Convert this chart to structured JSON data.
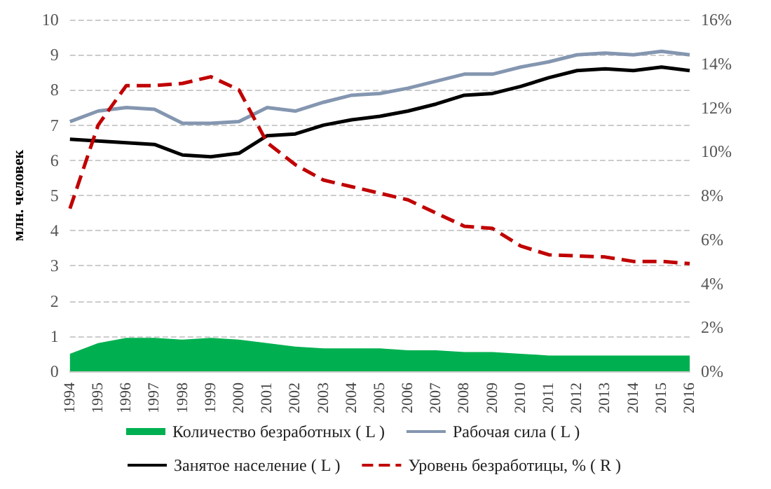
{
  "chart_data": {
    "type": "line",
    "ylabel": "млн. человек",
    "categories": [
      "1994",
      "1995",
      "1996",
      "1997",
      "1998",
      "1999",
      "2000",
      "2001",
      "2002",
      "2003",
      "2004",
      "2005",
      "2006",
      "2007",
      "2008",
      "2009",
      "2010",
      "2011",
      "2012",
      "2013",
      "2014",
      "2015",
      "2016"
    ],
    "series": [
      {
        "name": "Количество безработных ( L )",
        "type": "area",
        "color": "#00b050",
        "values": [
          0.5,
          0.8,
          0.95,
          0.95,
          0.9,
          0.95,
          0.9,
          0.8,
          0.7,
          0.65,
          0.65,
          0.65,
          0.6,
          0.6,
          0.55,
          0.55,
          0.5,
          0.45,
          0.45,
          0.45,
          0.45,
          0.45,
          0.45
        ]
      },
      {
        "name": "Рабочая сила ( L )",
        "color": "#8496b0",
        "values": [
          7.1,
          7.4,
          7.5,
          7.45,
          7.05,
          7.05,
          7.1,
          7.5,
          7.4,
          7.65,
          7.85,
          7.9,
          8.05,
          8.25,
          8.45,
          8.45,
          8.65,
          8.8,
          9.0,
          9.05,
          9.0,
          9.1,
          9.0
        ]
      },
      {
        "name": "Занятое население ( L )",
        "color": "#000000",
        "values": [
          6.6,
          6.55,
          6.5,
          6.45,
          6.15,
          6.1,
          6.2,
          6.7,
          6.75,
          7.0,
          7.15,
          7.25,
          7.4,
          7.6,
          7.85,
          7.9,
          8.1,
          8.35,
          8.55,
          8.6,
          8.55,
          8.65,
          8.55
        ]
      },
      {
        "name": "Уровень безработицы, % ( R )",
        "color": "#c00000",
        "axis": "y2",
        "line_style": "dashed",
        "values": [
          7.4,
          11.2,
          13.0,
          13.0,
          13.1,
          13.4,
          12.8,
          10.4,
          9.4,
          8.7,
          8.4,
          8.1,
          7.8,
          7.2,
          6.6,
          6.5,
          5.7,
          5.3,
          5.25,
          5.2,
          5.0,
          5.0,
          4.9
        ]
      }
    ],
    "ylim": [
      0,
      10
    ],
    "yticks": [
      0,
      1,
      2,
      3,
      4,
      5,
      6,
      7,
      8,
      9,
      10
    ],
    "y2lim": [
      0,
      16
    ],
    "y2ticks": [
      {
        "value": 0,
        "label": "0%"
      },
      {
        "value": 2,
        "label": "2%"
      },
      {
        "value": 4,
        "label": "4%"
      },
      {
        "value": 6,
        "label": "6%"
      },
      {
        "value": 8,
        "label": "8%"
      },
      {
        "value": 10,
        "label": "10%"
      },
      {
        "value": 12,
        "label": "12%"
      },
      {
        "value": 14,
        "label": "14%"
      },
      {
        "value": 16,
        "label": "16%"
      }
    ],
    "grid": "y",
    "legend": "bottom",
    "marker": "none",
    "line_style": "solid"
  }
}
